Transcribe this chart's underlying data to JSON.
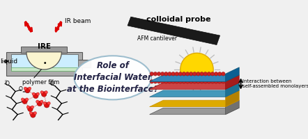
{
  "bg_color": "#f0f0f0",
  "title_text": "Role of\nInterfacial Water\nat the Biointerface?",
  "colloidal_probe_label": "colloidal probe",
  "afm_label": "AFM cantilever",
  "ire_label": "IRE",
  "ir_beam_label": "IR beam",
  "liquid_label": "liquid",
  "polymer_label": "polymer film",
  "interaction_label": "Interaction between\nself-assembled monolayers",
  "gray_dark": "#555555",
  "gray_medium": "#888888",
  "gray_light": "#bbbbbb",
  "yellow": "#FFD700",
  "cyan_light": "#cceeff",
  "red": "#dd0000",
  "blue_layer": "#3399cc",
  "teal_layer": "#44bbaa",
  "red_layer": "#cc3333",
  "gold_layer": "#ddaa00",
  "gold_dark": "#c89000",
  "cream": "#faf5d0",
  "cream_dark": "#e8e0a0",
  "black": "#111111",
  "white": "#ffffff",
  "oval_border": "#99bbcc",
  "text_dark": "#222244"
}
